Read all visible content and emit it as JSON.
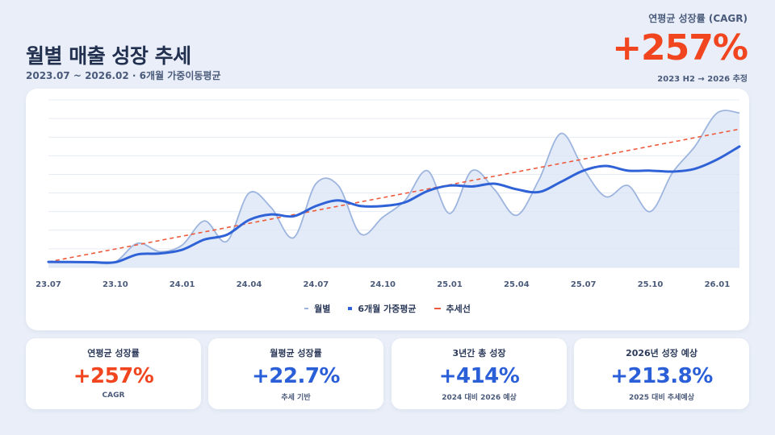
{
  "header": {
    "title": "월별 매출 성장 추세",
    "subtitle": "2023.07 ~ 2026.02 · 6개월 가중이동평균"
  },
  "headline_kpi": {
    "label": "연평균 성장률 (CAGR)",
    "value": "+257%",
    "note": "2023 H2 → 2026 추정",
    "color": "#f0451f"
  },
  "legend": {
    "monthly": "월별",
    "wma": "6개월 가중평균",
    "trend": "추세선"
  },
  "colors": {
    "monthly_line": "#9db5de",
    "monthly_fill": "#dbe4f6",
    "wma_line": "#2f62d6",
    "trend_line": "#ee5a3c",
    "kpi_blue": "#2a5fd8",
    "kpi_red": "#f0451f"
  },
  "kpis": [
    {
      "label": "연평균 성장률",
      "value": "+257%",
      "note": "CAGR",
      "color": "#f0451f"
    },
    {
      "label": "월평균 성장률",
      "value": "+22.7%",
      "note": "추세 기반",
      "color": "#2a5fd8"
    },
    {
      "label": "3년간 총 성장",
      "value": "+414%",
      "note": "2024 대비 2026 예상",
      "color": "#2a5fd8"
    },
    {
      "label": "2026년 성장 예상",
      "value": "+213.8%",
      "note": "2025 대비 추세예상",
      "color": "#2a5fd8"
    }
  ],
  "chart_data": {
    "type": "line",
    "categories": [
      "23.07",
      "23.08",
      "23.09",
      "23.10",
      "23.11",
      "23.12",
      "24.01",
      "24.02",
      "24.03",
      "24.04",
      "24.05",
      "24.06",
      "24.07",
      "24.08",
      "24.09",
      "24.10",
      "24.11",
      "24.12",
      "25.01",
      "25.02",
      "25.03",
      "25.04",
      "25.05",
      "25.06",
      "25.07",
      "25.08",
      "25.09",
      "25.10",
      "25.11",
      "25.12",
      "26.01",
      "26.02"
    ],
    "tick_labels": [
      "23.07",
      "23.10",
      "24.01",
      "24.04",
      "24.07",
      "24.10",
      "25.01",
      "25.04",
      "25.07",
      "25.10",
      "26.01"
    ],
    "tick_indices": [
      0,
      3,
      6,
      9,
      12,
      15,
      18,
      21,
      24,
      27,
      30
    ],
    "ylim": [
      0,
      9
    ],
    "grid": true,
    "legend_position": "bottom-center",
    "series": [
      {
        "name": "월별",
        "style": "area",
        "values": [
          0.3,
          0.3,
          0.25,
          0.3,
          1.3,
          0.85,
          1.2,
          2.5,
          1.4,
          4.0,
          3.2,
          1.6,
          4.5,
          4.4,
          1.8,
          2.7,
          3.6,
          5.2,
          2.9,
          5.2,
          4.2,
          2.8,
          4.7,
          7.2,
          5.3,
          3.8,
          4.4,
          3.0,
          5.1,
          6.5,
          8.3,
          8.3
        ]
      },
      {
        "name": "6개월 가중평균",
        "style": "line",
        "values": [
          0.3,
          0.29,
          0.28,
          0.28,
          0.7,
          0.75,
          0.95,
          1.5,
          1.75,
          2.55,
          2.85,
          2.75,
          3.3,
          3.6,
          3.3,
          3.3,
          3.5,
          4.1,
          4.4,
          4.35,
          4.5,
          4.2,
          4.05,
          4.6,
          5.2,
          5.45,
          5.2,
          5.2,
          5.15,
          5.3,
          5.8,
          6.5
        ]
      },
      {
        "name": "추세선",
        "style": "dashed",
        "values": [
          0.3,
          0.53,
          0.76,
          0.99,
          1.22,
          1.45,
          1.68,
          1.91,
          2.14,
          2.37,
          2.6,
          2.83,
          3.06,
          3.29,
          3.52,
          3.75,
          3.98,
          4.21,
          4.44,
          4.67,
          4.9,
          5.13,
          5.36,
          5.59,
          5.82,
          6.05,
          6.28,
          6.51,
          6.74,
          6.97,
          7.2,
          7.43
        ]
      }
    ]
  }
}
